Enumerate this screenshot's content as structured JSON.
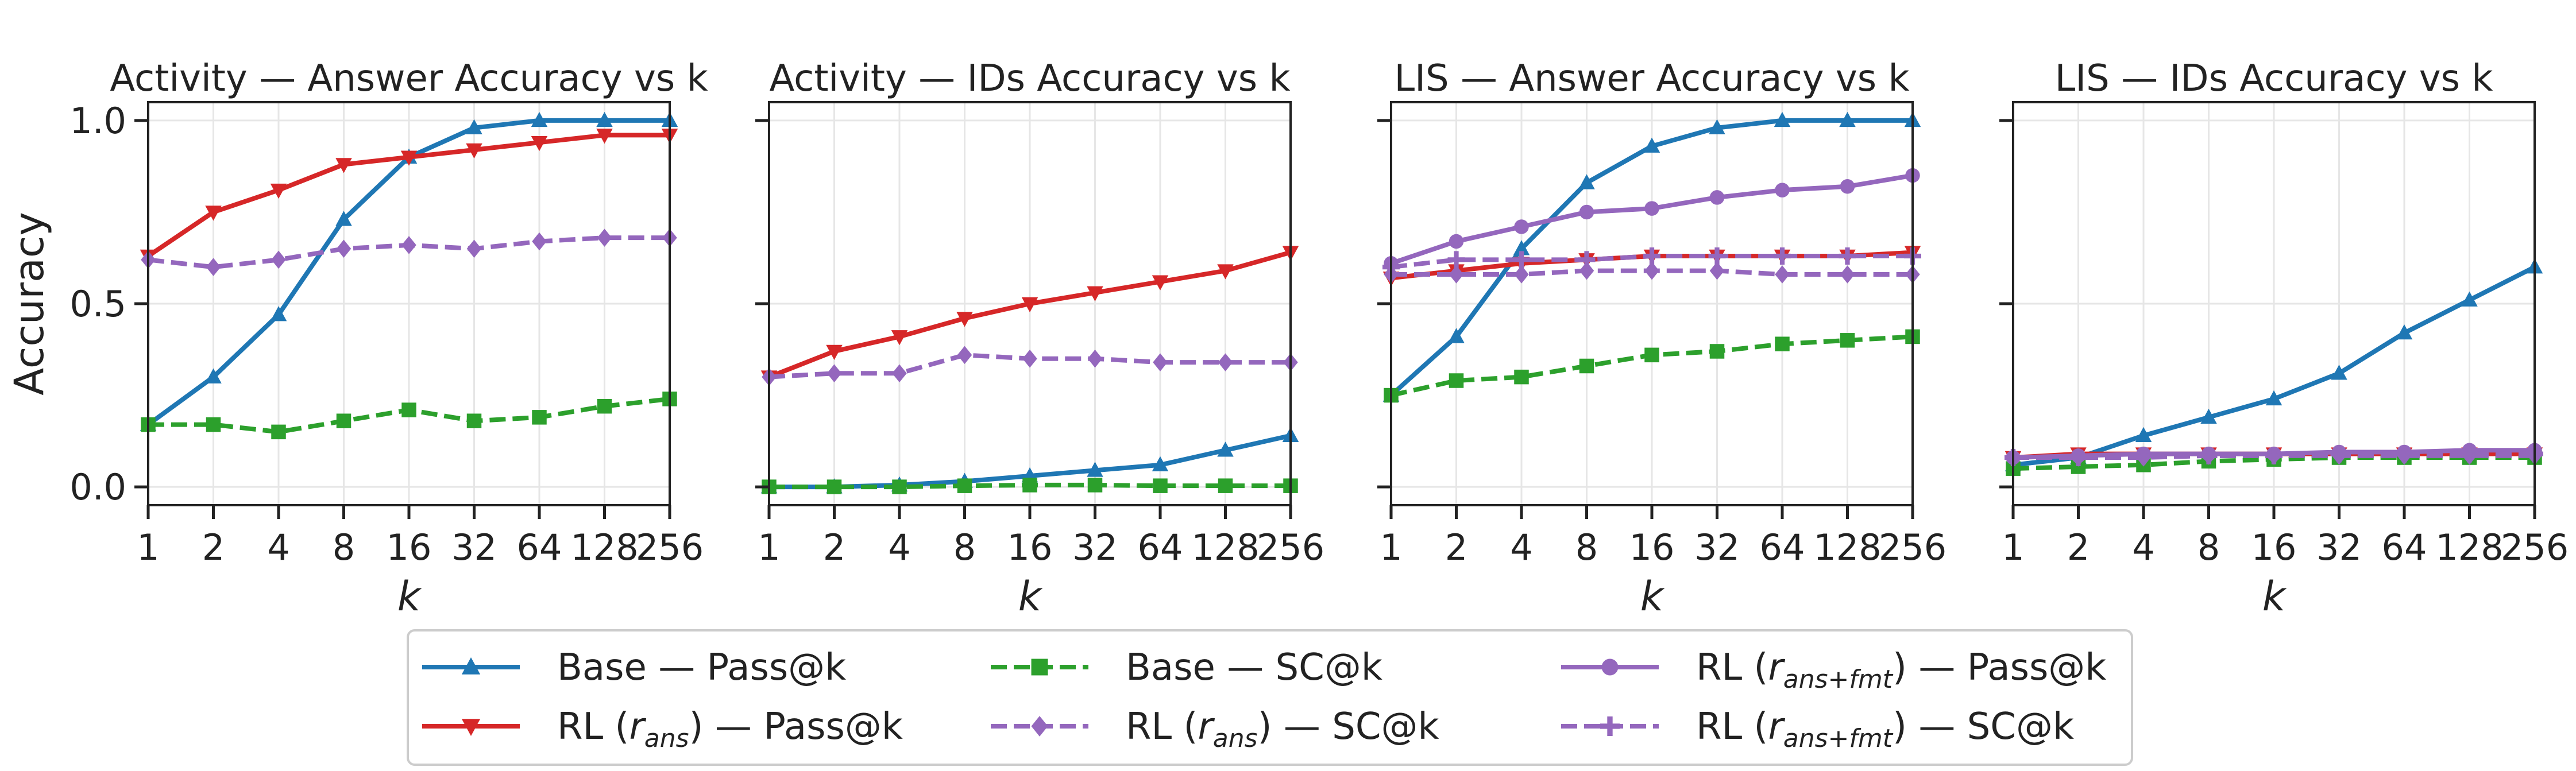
{
  "chart_data": [
    {
      "type": "line",
      "title": "Activity — Answer Accuracy vs k",
      "xlabel": "k",
      "ylabel": "Accuracy",
      "xscale": "log2",
      "x": [
        1,
        2,
        4,
        8,
        16,
        32,
        64,
        128,
        256
      ],
      "xticklabels": [
        "1",
        "2",
        "4",
        "8",
        "16",
        "32",
        "64",
        "128",
        "256"
      ],
      "ylim": [
        -0.05,
        1.05
      ],
      "yticks": [
        0.0,
        0.5,
        1.0
      ],
      "yticklabels": [
        "0.0",
        "0.5",
        "1.0"
      ],
      "series": [
        {
          "key": "base_pass",
          "values": [
            0.17,
            0.3,
            0.47,
            0.73,
            0.9,
            0.98,
            1.0,
            1.0,
            1.0
          ]
        },
        {
          "key": "rl_ans_pass",
          "values": [
            0.63,
            0.75,
            0.81,
            0.88,
            0.9,
            0.92,
            0.94,
            0.96,
            0.96
          ]
        },
        {
          "key": "base_sc",
          "values": [
            0.17,
            0.17,
            0.15,
            0.18,
            0.21,
            0.18,
            0.19,
            0.22,
            0.24
          ]
        },
        {
          "key": "rl_ans_sc",
          "values": [
            0.62,
            0.6,
            0.62,
            0.65,
            0.66,
            0.65,
            0.67,
            0.68,
            0.68
          ]
        }
      ]
    },
    {
      "type": "line",
      "title": "Activity — IDs Accuracy vs k",
      "xlabel": "k",
      "ylabel": "",
      "xscale": "log2",
      "x": [
        1,
        2,
        4,
        8,
        16,
        32,
        64,
        128,
        256
      ],
      "xticklabels": [
        "1",
        "2",
        "4",
        "8",
        "16",
        "32",
        "64",
        "128",
        "256"
      ],
      "ylim": [
        -0.05,
        1.05
      ],
      "yticks": [
        0.0,
        0.5,
        1.0
      ],
      "yticklabels": [],
      "series": [
        {
          "key": "base_pass",
          "values": [
            0.0,
            0.0,
            0.005,
            0.015,
            0.03,
            0.045,
            0.06,
            0.1,
            0.14
          ]
        },
        {
          "key": "rl_ans_pass",
          "values": [
            0.3,
            0.37,
            0.41,
            0.46,
            0.5,
            0.53,
            0.56,
            0.59,
            0.64
          ]
        },
        {
          "key": "base_sc",
          "values": [
            0.0,
            0.0,
            0.0,
            0.003,
            0.005,
            0.005,
            0.003,
            0.003,
            0.003
          ]
        },
        {
          "key": "rl_ans_sc",
          "values": [
            0.3,
            0.31,
            0.31,
            0.36,
            0.35,
            0.35,
            0.34,
            0.34,
            0.34
          ]
        }
      ]
    },
    {
      "type": "line",
      "title": "LIS — Answer Accuracy vs k",
      "xlabel": "k",
      "ylabel": "",
      "xscale": "log2",
      "x": [
        1,
        2,
        4,
        8,
        16,
        32,
        64,
        128,
        256
      ],
      "xticklabels": [
        "1",
        "2",
        "4",
        "8",
        "16",
        "32",
        "64",
        "128",
        "256"
      ],
      "ylim": [
        -0.05,
        1.05
      ],
      "yticks": [
        0.0,
        0.5,
        1.0
      ],
      "yticklabels": [],
      "series": [
        {
          "key": "base_pass",
          "values": [
            0.25,
            0.41,
            0.65,
            0.83,
            0.93,
            0.98,
            1.0,
            1.0,
            1.0
          ]
        },
        {
          "key": "rl_ans_pass",
          "values": [
            0.57,
            0.59,
            0.61,
            0.62,
            0.63,
            0.63,
            0.63,
            0.63,
            0.64
          ]
        },
        {
          "key": "base_sc",
          "values": [
            0.25,
            0.29,
            0.3,
            0.33,
            0.36,
            0.37,
            0.39,
            0.4,
            0.41
          ]
        },
        {
          "key": "rl_ans_sc",
          "values": [
            0.58,
            0.58,
            0.58,
            0.59,
            0.59,
            0.59,
            0.58,
            0.58,
            0.58
          ]
        },
        {
          "key": "rl_fmt_pass",
          "values": [
            0.61,
            0.67,
            0.71,
            0.75,
            0.76,
            0.79,
            0.81,
            0.82,
            0.85
          ]
        },
        {
          "key": "rl_fmt_sc",
          "values": [
            0.6,
            0.62,
            0.62,
            0.62,
            0.63,
            0.63,
            0.63,
            0.63,
            0.63
          ]
        }
      ]
    },
    {
      "type": "line",
      "title": "LIS — IDs Accuracy vs k",
      "xlabel": "k",
      "ylabel": "",
      "xscale": "log2",
      "x": [
        1,
        2,
        4,
        8,
        16,
        32,
        64,
        128,
        256
      ],
      "xticklabels": [
        "1",
        "2",
        "4",
        "8",
        "16",
        "32",
        "64",
        "128",
        "256"
      ],
      "ylim": [
        -0.05,
        1.05
      ],
      "yticks": [
        0.0,
        0.5,
        1.0
      ],
      "yticklabels": [],
      "series": [
        {
          "key": "base_pass",
          "values": [
            0.06,
            0.08,
            0.14,
            0.19,
            0.24,
            0.31,
            0.42,
            0.51,
            0.6
          ]
        },
        {
          "key": "rl_ans_pass",
          "values": [
            0.08,
            0.09,
            0.09,
            0.09,
            0.09,
            0.09,
            0.09,
            0.09,
            0.09
          ]
        },
        {
          "key": "base_sc",
          "values": [
            0.05,
            0.055,
            0.06,
            0.07,
            0.075,
            0.08,
            0.08,
            0.08,
            0.08
          ]
        },
        {
          "key": "rl_ans_sc",
          "values": [
            0.08,
            0.08,
            0.08,
            0.085,
            0.085,
            0.085,
            0.085,
            0.085,
            0.085
          ]
        },
        {
          "key": "rl_fmt_pass",
          "values": [
            0.08,
            0.085,
            0.09,
            0.09,
            0.09,
            0.095,
            0.095,
            0.1,
            0.1
          ]
        },
        {
          "key": "rl_fmt_sc",
          "values": [
            0.08,
            0.08,
            0.085,
            0.085,
            0.085,
            0.09,
            0.09,
            0.09,
            0.09
          ]
        }
      ]
    }
  ],
  "legend": {
    "position": "bottom-center",
    "entries": [
      {
        "key": "base_pass",
        "label": "Base — Pass@k",
        "prefix": "",
        "sub": "",
        "suffix": "",
        "color": "#1f77b4",
        "dashed": false,
        "marker": "triangle-up"
      },
      {
        "key": "rl_ans_pass",
        "label": "RL (r_ans) — Pass@k",
        "prefix": "RL (",
        "sub": "ans",
        "suffix": ") — Pass@k",
        "color": "#d62728",
        "dashed": false,
        "marker": "triangle-down"
      },
      {
        "key": "base_sc",
        "label": "Base — SC@k",
        "prefix": "",
        "sub": "",
        "suffix": "",
        "color": "#2ca02c",
        "dashed": true,
        "marker": "square"
      },
      {
        "key": "rl_ans_sc",
        "label": "RL (r_ans) — SC@k",
        "prefix": "RL (",
        "sub": "ans",
        "suffix": ") — SC@k",
        "color": "#9467bd",
        "dashed": true,
        "marker": "diamond"
      },
      {
        "key": "rl_fmt_pass",
        "label": "RL (r_ans+fmt) — Pass@k",
        "prefix": "RL (",
        "sub": "ans+fmt",
        "suffix": ") — Pass@k",
        "color": "#9467bd",
        "dashed": false,
        "marker": "circle"
      },
      {
        "key": "rl_fmt_sc",
        "label": "RL (r_ans+fmt) — SC@k",
        "prefix": "RL (",
        "sub": "ans+fmt",
        "suffix": ") — SC@k",
        "color": "#9467bd",
        "dashed": true,
        "marker": "plus"
      }
    ]
  }
}
